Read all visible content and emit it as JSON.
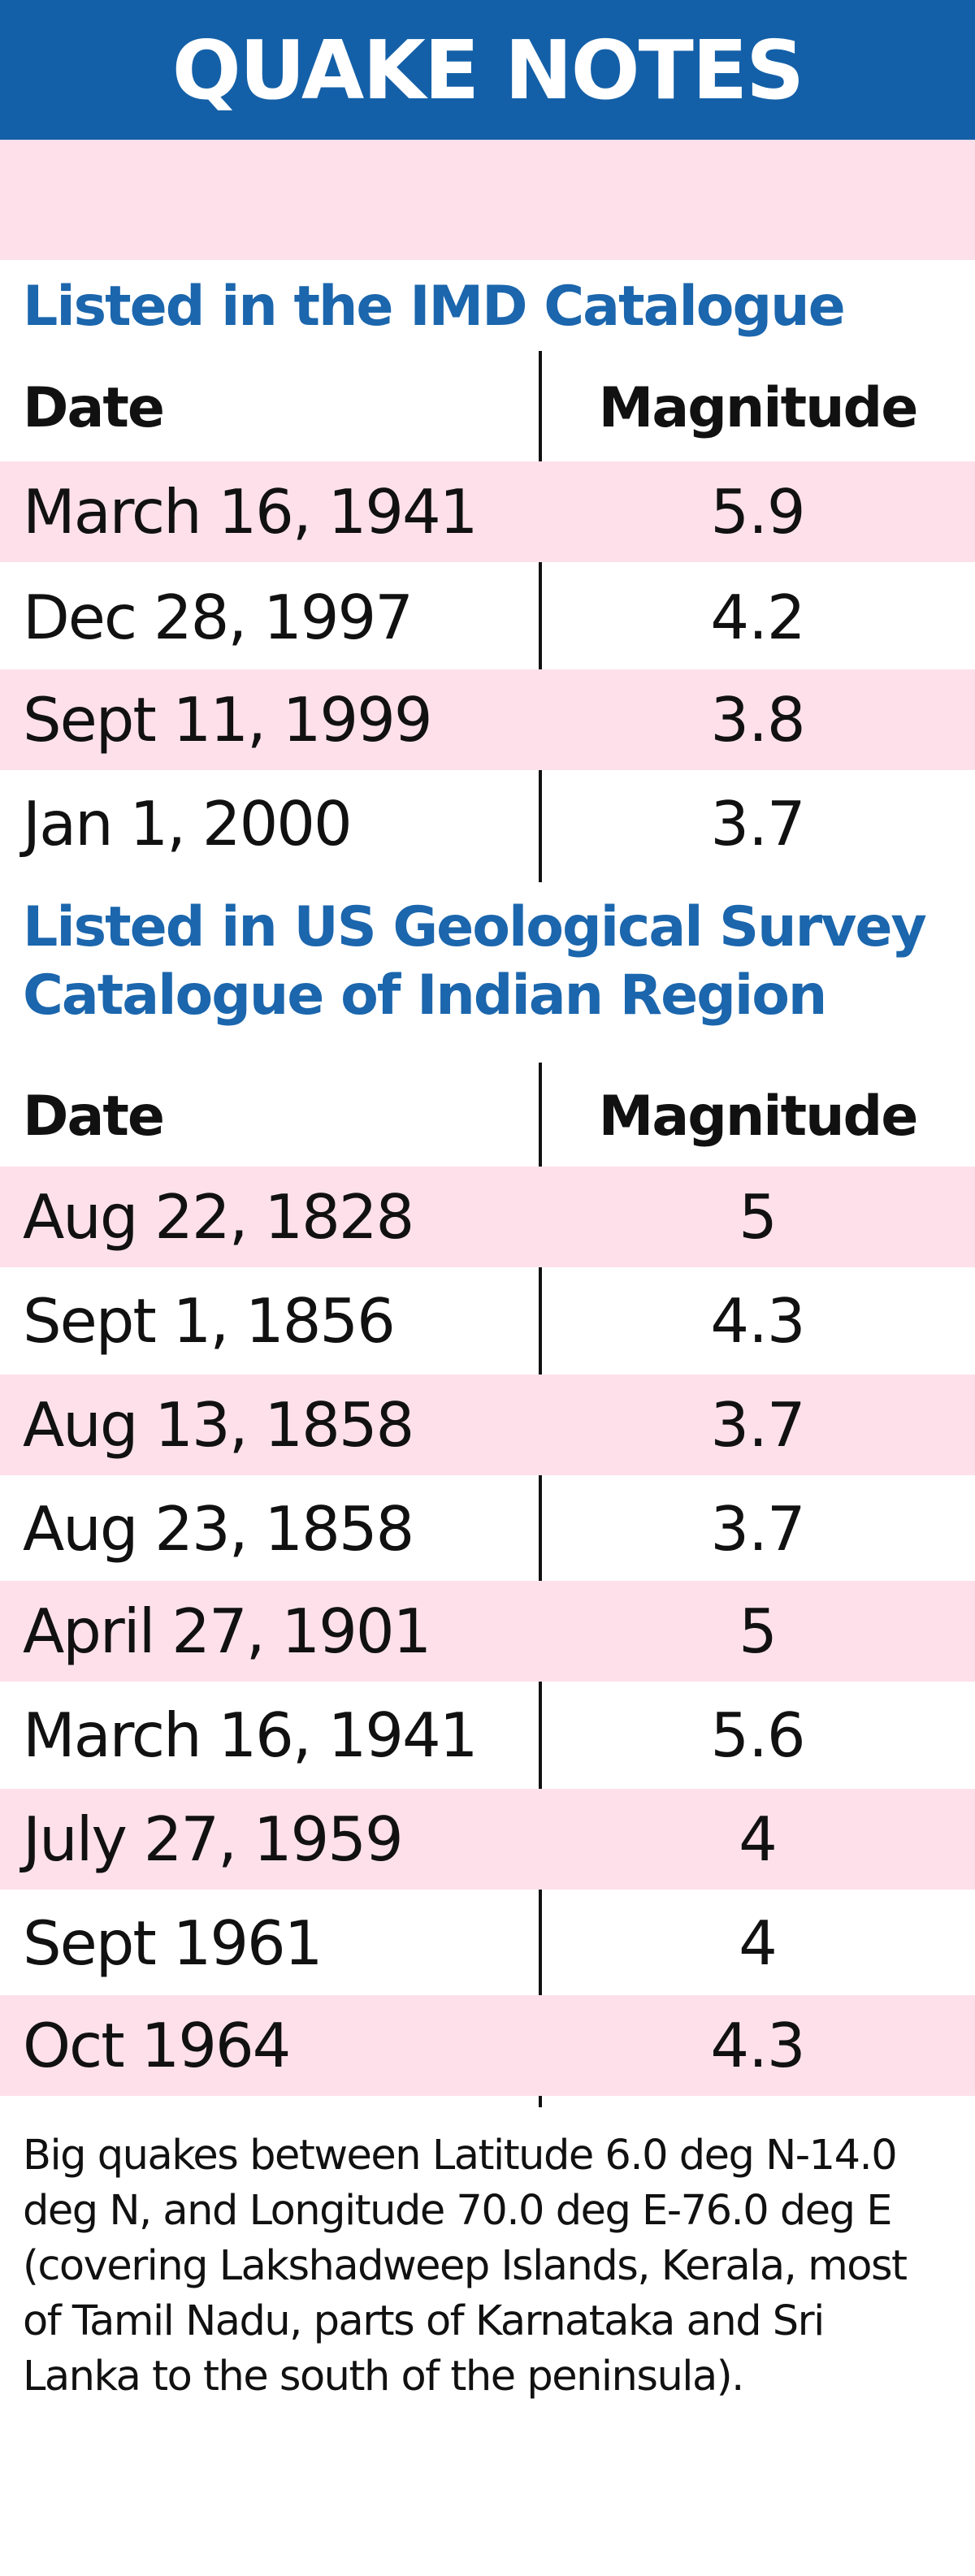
{
  "title": "QUAKE NOTES",
  "imd": {
    "heading": "Listed in the IMD Catalogue",
    "col_date": "Date",
    "col_mag": "Magnitude",
    "rows": [
      {
        "date": "March 16, 1941",
        "mag": "5.9"
      },
      {
        "date": "Dec 28, 1997",
        "mag": "4.2"
      },
      {
        "date": "Sept 11, 1999",
        "mag": "3.8"
      },
      {
        "date": "Jan 1, 2000",
        "mag": "3.7"
      }
    ]
  },
  "usgs": {
    "heading_line1": "Listed in US Geological Survey",
    "heading_line2": "Catalogue of Indian Region",
    "col_date": "Date",
    "col_mag": "Magnitude",
    "rows": [
      {
        "date": "Aug 22, 1828",
        "mag": "5"
      },
      {
        "date": "Sept 1, 1856",
        "mag": "4.3"
      },
      {
        "date": "Aug 13, 1858",
        "mag": "3.7"
      },
      {
        "date": "Aug 23, 1858",
        "mag": "3.7"
      },
      {
        "date": "April 27, 1901",
        "mag": "5"
      },
      {
        "date": "March 16, 1941",
        "mag": "5.6"
      },
      {
        "date": "July 27, 1959",
        "mag": "4"
      },
      {
        "date": "Sept 1961",
        "mag": "4"
      },
      {
        "date": "Oct 1964",
        "mag": "4.3"
      }
    ]
  },
  "note": "Big quakes between Latitude 6.0 deg N-14.0 deg N, and Longitude 70.0 deg E-76.0 deg E (covering Lakshadweep Islands, Kerala, most of Tamil Nadu, parts of Karnataka and Sri Lanka to the south of the peninsula).",
  "colors": {
    "header_bg": "#1460a8",
    "heading_blue": "#1b66ad",
    "row_pink": "#fde0ea"
  }
}
